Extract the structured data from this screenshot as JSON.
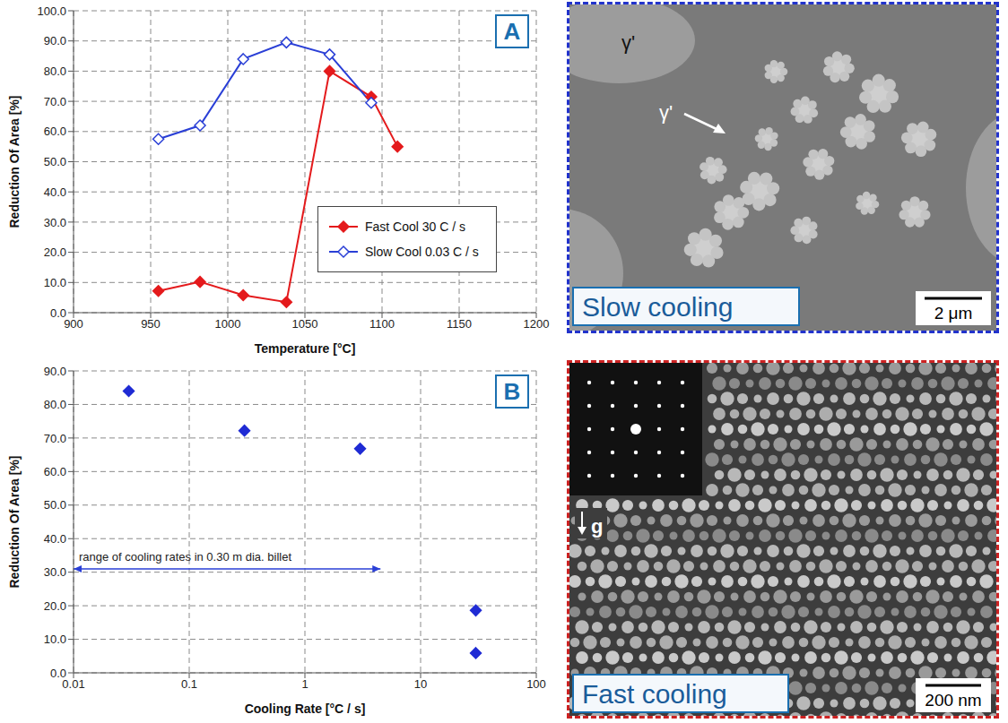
{
  "chart_data": [
    {
      "type": "line",
      "panel": "A",
      "xlabel": "Temperature [°C]",
      "ylabel": "Reduction Of Area [%]",
      "x": [
        955,
        982,
        1010,
        1038,
        1066,
        1093,
        1110
      ],
      "xlim": [
        900,
        1200
      ],
      "xticks": [
        900,
        950,
        1000,
        1050,
        1100,
        1150,
        1200
      ],
      "ylim": [
        0,
        100
      ],
      "yticks": [
        {
          "value": 0,
          "label": "0.0"
        },
        {
          "value": 10,
          "label": "10.0"
        },
        {
          "value": 20,
          "label": "20.0"
        },
        {
          "value": 30,
          "label": "30.0"
        },
        {
          "value": 40,
          "label": "40.0"
        },
        {
          "value": 50,
          "label": "50.0"
        },
        {
          "value": 60,
          "label": "60.0"
        },
        {
          "value": 70,
          "label": "70.0"
        },
        {
          "value": 80,
          "label": "80.0"
        },
        {
          "value": 90,
          "label": "90.0"
        },
        {
          "value": 100,
          "label": "100.0"
        }
      ],
      "grid": true,
      "legend": "right",
      "series": [
        {
          "name": "Fast Cool 30 C / s",
          "color": "#e41a1c",
          "marker": "diamond",
          "values": [
            7.2,
            10.2,
            5.8,
            3.5,
            80,
            71.5,
            55
          ]
        },
        {
          "name": "Slow Cool 0.03 C / s",
          "color": "#2a3fd6",
          "marker": "open_diamond",
          "values": [
            57.5,
            62,
            84,
            89.5,
            85.5,
            69.5,
            null
          ]
        }
      ]
    },
    {
      "type": "scatter",
      "panel": "B",
      "xlabel": "Cooling Rate [°C / s]",
      "ylabel": "Reduction Of Area [%]",
      "log": "x",
      "x": [
        0.03,
        0.3,
        3,
        30,
        30
      ],
      "values": [
        84,
        72.2,
        66.8,
        18.6,
        5.9
      ],
      "color": "#1f2bd4",
      "marker": "diamond",
      "xlim": [
        0.01,
        100
      ],
      "xticks": [
        0.01,
        0.1,
        1,
        10,
        100
      ],
      "ylim": [
        0,
        90
      ],
      "yticks": [
        {
          "value": 0,
          "label": "0.0"
        },
        {
          "value": 10,
          "label": "10.0"
        },
        {
          "value": 20,
          "label": "20.0"
        },
        {
          "value": 30,
          "label": "30.0"
        },
        {
          "value": 40,
          "label": "40.0"
        },
        {
          "value": 50,
          "label": "50.0"
        },
        {
          "value": 60,
          "label": "60.0"
        },
        {
          "value": 70,
          "label": "70.0"
        },
        {
          "value": 80,
          "label": "80.0"
        },
        {
          "value": 90,
          "label": "90.0"
        }
      ],
      "grid": true,
      "annotations": [
        {
          "text": "range of cooling rates in 0.30 m dia. billet",
          "x": [
            0.01,
            4.5
          ],
          "y": 31
        }
      ]
    }
  ],
  "images": [
    {
      "label": "Slow cooling",
      "scale_bar": "2 μm",
      "annotations": [
        "γ'",
        "γ'"
      ],
      "color": "#2233cc"
    },
    {
      "label": "Fast cooling",
      "scale_bar": "200 nm",
      "annotations": [
        "g"
      ],
      "color": "#cc2222"
    }
  ]
}
